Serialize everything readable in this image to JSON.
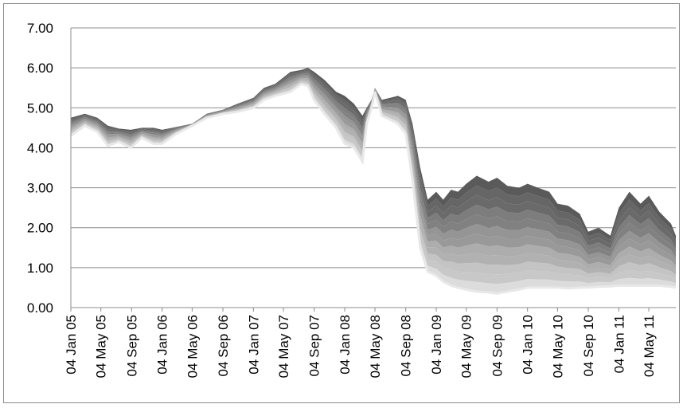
{
  "chart_data": {
    "type": "area",
    "title": "",
    "xlabel": "",
    "ylabel": "",
    "ylim": [
      0,
      7
    ],
    "yticks": [
      "0.00",
      "1.00",
      "2.00",
      "3.00",
      "4.00",
      "5.00",
      "6.00",
      "7.00"
    ],
    "xlim": [
      "2005-01-04",
      "2011-08-20"
    ],
    "xticks": [
      "04 Jan 05",
      "04 May 05",
      "04 Sep 05",
      "04 Jan 06",
      "04 May 06",
      "04 Sep 06",
      "04 Jan 07",
      "04 May 07",
      "04 Sep 07",
      "04 Jan 08",
      "04 May 08",
      "04 Sep 08",
      "04 Jan 09",
      "04 May 09",
      "04 Sep 09",
      "04 Jan 10",
      "04 May 10",
      "04 Sep 10",
      "04 Jan 11",
      "04 May 11"
    ],
    "grid": "horizontal",
    "legend": "none",
    "colors": {
      "top_band": "#5a5a5a",
      "bottom_band": "#dcdcdc",
      "grid": "#8c8c8c",
      "axis": "#8c8c8c"
    },
    "band_series": {
      "num_bands": 12,
      "x": [
        "2005-01-04",
        "2005-03-01",
        "2005-04-20",
        "2005-06-01",
        "2005-07-15",
        "2005-09-01",
        "2005-10-15",
        "2005-12-01",
        "2006-01-04",
        "2006-03-01",
        "2006-05-04",
        "2006-07-01",
        "2006-09-04",
        "2006-11-01",
        "2007-01-04",
        "2007-02-15",
        "2007-04-01",
        "2007-06-01",
        "2007-07-15",
        "2007-08-10",
        "2007-09-04",
        "2007-10-15",
        "2007-12-01",
        "2008-01-04",
        "2008-02-10",
        "2008-03-15",
        "2008-04-01",
        "2008-04-20",
        "2008-05-04",
        "2008-06-01",
        "2008-07-04",
        "2008-08-04",
        "2008-09-04",
        "2008-10-01",
        "2008-11-01",
        "2008-12-01",
        "2009-01-04",
        "2009-02-01",
        "2009-03-04",
        "2009-04-01",
        "2009-05-04",
        "2009-06-15",
        "2009-08-01",
        "2009-09-04",
        "2009-10-15",
        "2009-12-01",
        "2010-01-04",
        "2010-02-15",
        "2010-04-01",
        "2010-05-04",
        "2010-06-15",
        "2010-08-01",
        "2010-09-04",
        "2010-10-15",
        "2010-12-01",
        "2011-01-04",
        "2011-02-15",
        "2011-04-01",
        "2011-05-04",
        "2011-06-15",
        "2011-08-01",
        "2011-08-20"
      ],
      "upper": [
        4.75,
        4.85,
        4.75,
        4.55,
        4.48,
        4.45,
        4.5,
        4.5,
        4.45,
        4.52,
        4.6,
        4.85,
        4.95,
        5.1,
        5.25,
        5.5,
        5.6,
        5.9,
        5.95,
        6.0,
        5.9,
        5.7,
        5.4,
        5.3,
        5.1,
        4.8,
        5.0,
        5.2,
        5.5,
        5.2,
        5.25,
        5.3,
        5.2,
        4.6,
        3.5,
        2.7,
        2.9,
        2.7,
        2.95,
        2.9,
        3.1,
        3.3,
        3.15,
        3.25,
        3.05,
        3.0,
        3.1,
        3.0,
        2.9,
        2.6,
        2.55,
        2.35,
        1.9,
        2.0,
        1.8,
        2.5,
        2.9,
        2.6,
        2.8,
        2.4,
        2.1,
        1.8
      ],
      "lower": [
        4.3,
        4.55,
        4.4,
        4.05,
        4.15,
        4.0,
        4.25,
        4.1,
        4.1,
        4.35,
        4.55,
        4.75,
        4.85,
        4.9,
        5.0,
        5.2,
        5.3,
        5.4,
        5.6,
        5.55,
        5.2,
        4.85,
        4.5,
        4.1,
        4.0,
        3.65,
        4.6,
        5.0,
        5.4,
        4.8,
        4.7,
        4.6,
        4.35,
        3.2,
        1.5,
        0.9,
        0.8,
        0.65,
        0.55,
        0.5,
        0.45,
        0.4,
        0.38,
        0.35,
        0.4,
        0.45,
        0.5,
        0.5,
        0.5,
        0.5,
        0.48,
        0.5,
        0.5,
        0.52,
        0.53,
        0.55,
        0.55,
        0.55,
        0.55,
        0.55,
        0.52,
        0.5
      ]
    }
  }
}
